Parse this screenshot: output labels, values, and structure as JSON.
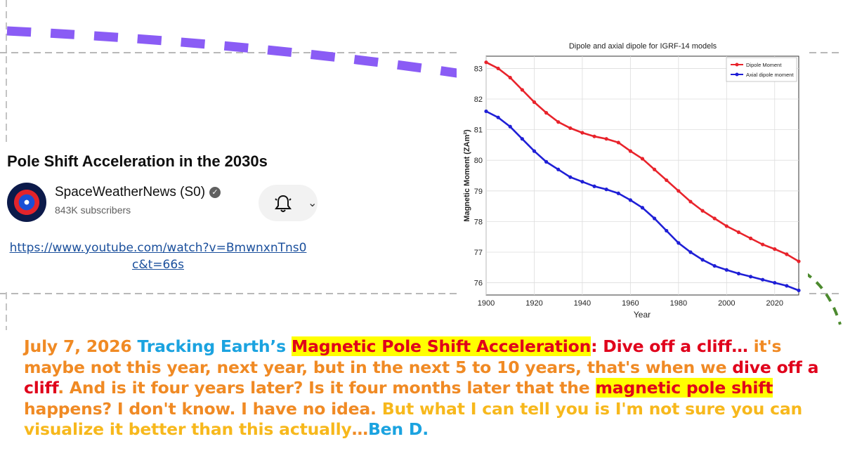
{
  "video_card": {
    "title": "Pole Shift Acceleration in the 2030s",
    "channel_name": "SpaceWeatherNews (S0)",
    "verified_icon": "check",
    "subscribers": "843K subscribers",
    "bell_icon": "bell-icon",
    "chevron": "⌄",
    "link": "https://www.youtube.com/watch?v=BmwnxnTns0c&t=66s"
  },
  "caption": {
    "date": "July 7, 2026",
    "part1": " Tracking Earth’s ",
    "highlight1": "Magnetic Pole Shift Acceleration",
    "part2": ": Dive off a cliff… ",
    "part3": "it's maybe not this year, next year, but in the next 5 to 10 years, that's when we ",
    "part4": "dive off a cliff",
    "part5": ". And is it four years later? Is it four months later that the ",
    "highlight2": "magnetic pole shift",
    "part6": " happens? I don't know. I have no idea. ",
    "part7": "But what I can tell you is I'm not sure you can visualize it better than this actually",
    "part8": "…",
    "signature": "Ben D."
  },
  "colors": {
    "dipole": "#e8232b",
    "axial": "#1f1fd6",
    "dash_purple": "#8a5cf5",
    "dash_green": "#4c8a2e"
  },
  "chart_data": {
    "type": "line",
    "title": "Dipole and axial dipole for IGRF-14 models",
    "xlabel": "Year",
    "ylabel": "Magnetic Moment (ZAm²)",
    "xlim": [
      1900,
      2030
    ],
    "ylim": [
      75.6,
      83.4
    ],
    "xticks": [
      "1900",
      "1920",
      "1940",
      "1960",
      "1980",
      "2000",
      "2020"
    ],
    "yticks": [
      "76",
      "77",
      "78",
      "79",
      "80",
      "81",
      "82",
      "83"
    ],
    "grid": true,
    "legend_position": "top-right",
    "x": [
      1900,
      1905,
      1910,
      1915,
      1920,
      1925,
      1930,
      1935,
      1940,
      1945,
      1950,
      1955,
      1960,
      1965,
      1970,
      1975,
      1980,
      1985,
      1990,
      1995,
      2000,
      2005,
      2010,
      2015,
      2020,
      2025,
      2030
    ],
    "series": [
      {
        "name": "Dipole Moment",
        "values": [
          83.2,
          83.0,
          82.7,
          82.3,
          81.9,
          81.55,
          81.25,
          81.05,
          80.9,
          80.78,
          80.7,
          80.58,
          80.3,
          80.05,
          79.7,
          79.35,
          79.0,
          78.65,
          78.35,
          78.1,
          77.85,
          77.65,
          77.45,
          77.25,
          77.1,
          76.93,
          76.7
        ]
      },
      {
        "name": "Axial dipole moment",
        "values": [
          81.6,
          81.4,
          81.1,
          80.7,
          80.3,
          79.95,
          79.7,
          79.45,
          79.3,
          79.15,
          79.05,
          78.92,
          78.7,
          78.45,
          78.1,
          77.7,
          77.3,
          77.0,
          76.75,
          76.55,
          76.42,
          76.3,
          76.2,
          76.1,
          76.0,
          75.9,
          75.75
        ]
      }
    ]
  }
}
